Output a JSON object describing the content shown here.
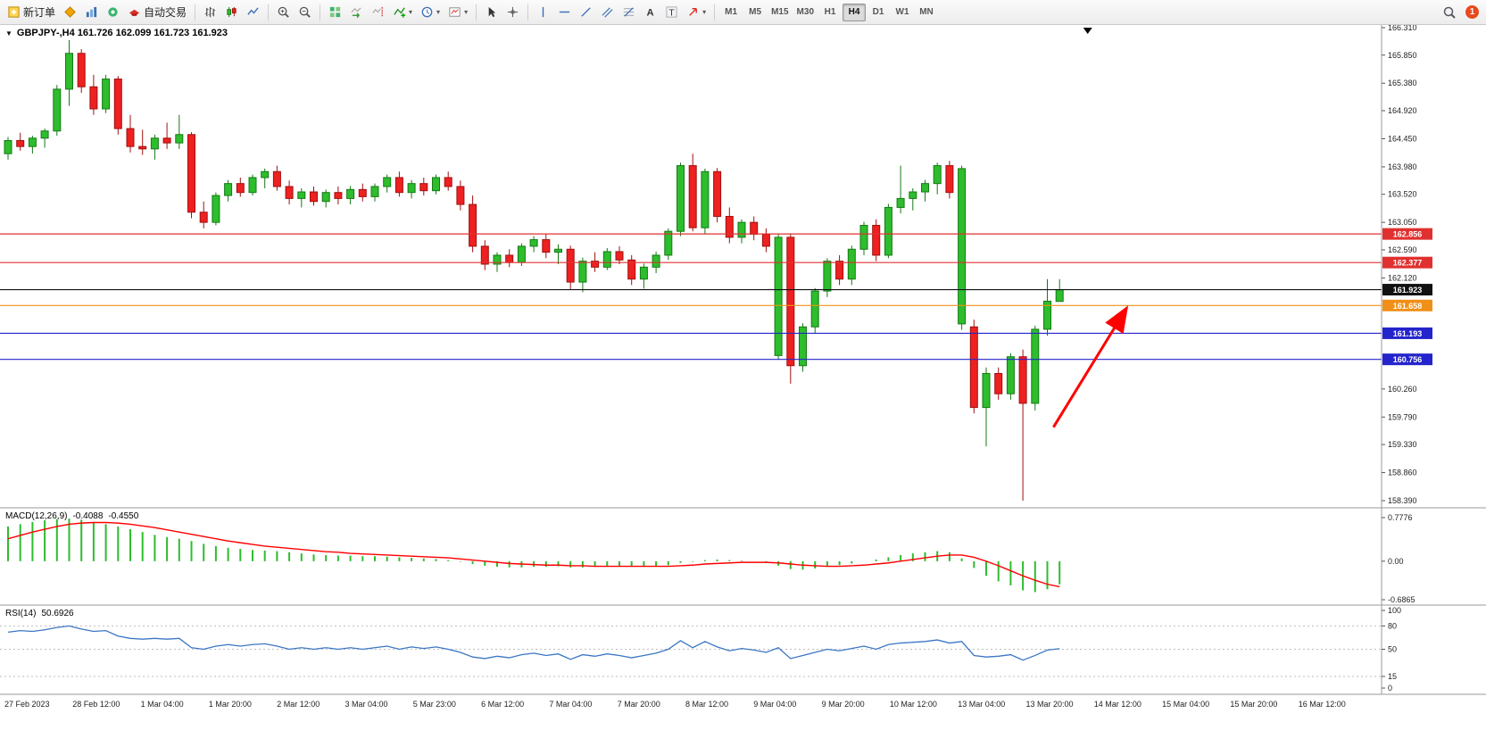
{
  "toolbar": {
    "new_order_label": "新订单",
    "autotrading_label": "自动交易",
    "timeframes": [
      "M1",
      "M5",
      "M15",
      "M30",
      "H1",
      "H4",
      "D1",
      "W1",
      "MN"
    ],
    "active_timeframe": "H4",
    "notification_count": "1",
    "icons": [
      "new-order",
      "symbols",
      "charts",
      "alerts",
      "autotrading",
      "bar-chart",
      "candlestick-chart",
      "line-chart",
      "zoom-in",
      "zoom-out",
      "tile-windows",
      "auto-scroll",
      "chart-shift",
      "indicators",
      "periods",
      "templates",
      "cursor",
      "crosshair",
      "vertical-line",
      "horizontal-line",
      "trendline",
      "channel",
      "fibonacci",
      "text",
      "label",
      "arrows",
      "search",
      "notification"
    ]
  },
  "chart_data": {
    "type": "candlestick",
    "symbol": "GBPJPY-",
    "timeframe": "H4",
    "legend": "GBPJPY-,H4 161.726 162.099 161.723 161.923",
    "ohlc": {
      "open": "161.726",
      "high": "162.099",
      "low": "161.723",
      "close": "161.923"
    },
    "price_range": [
      158.39,
      166.31
    ],
    "price_axis_labels": [
      "166.310",
      "165.850",
      "165.380",
      "164.920",
      "164.450",
      "163.980",
      "163.520",
      "163.050",
      "162.590",
      "162.120",
      "160.260",
      "159.790",
      "159.330",
      "158.860",
      "158.390"
    ],
    "time_axis_labels": [
      "27 Feb 2023",
      "28 Feb 12:00",
      "1 Mar 04:00",
      "1 Mar 20:00",
      "2 Mar 12:00",
      "3 Mar 04:00",
      "5 Mar 23:00",
      "6 Mar 12:00",
      "7 Mar 04:00",
      "7 Mar 20:00",
      "8 Mar 12:00",
      "9 Mar 04:00",
      "9 Mar 20:00",
      "10 Mar 12:00",
      "13 Mar 04:00",
      "13 Mar 20:00",
      "14 Mar 12:00",
      "15 Mar 04:00",
      "15 Mar 20:00",
      "16 Mar 12:00"
    ],
    "colors": {
      "up": "#2DBD2D",
      "down": "#EE2020",
      "up_dark": "#157A15",
      "down_dark": "#A01010",
      "rsi": "#3B76C4",
      "macd_signal": "#FF0000"
    },
    "horizontal_lines": [
      {
        "price": 162.856,
        "label": "162.856",
        "color": "#E03030"
      },
      {
        "price": 162.377,
        "label": "162.377",
        "color": "#E03030"
      },
      {
        "price": 161.923,
        "label": "161.923",
        "color": "#111111"
      },
      {
        "price": 161.658,
        "label": "161.658",
        "color": "#F09018"
      },
      {
        "price": 161.193,
        "label": "161.193",
        "color": "#2424CC"
      },
      {
        "price": 160.756,
        "label": "160.756",
        "color": "#2424CC"
      }
    ],
    "arrow": {
      "color": "#FF0000",
      "from": {
        "index": 85.5,
        "price": 159.62
      },
      "to": {
        "index": 91.5,
        "price": 161.62
      }
    },
    "shift_marker_index": 88.3,
    "candles": [
      [
        164.2,
        164.48,
        164.1,
        164.42
      ],
      [
        164.42,
        164.55,
        164.25,
        164.32
      ],
      [
        164.32,
        164.5,
        164.2,
        164.46
      ],
      [
        164.46,
        164.62,
        164.3,
        164.58
      ],
      [
        164.58,
        165.35,
        164.5,
        165.28
      ],
      [
        165.28,
        166.1,
        165.0,
        165.88
      ],
      [
        165.88,
        165.95,
        165.22,
        165.32
      ],
      [
        165.32,
        165.52,
        164.85,
        164.95
      ],
      [
        164.95,
        165.52,
        164.88,
        165.45
      ],
      [
        165.45,
        165.5,
        164.52,
        164.62
      ],
      [
        164.62,
        164.85,
        164.22,
        164.32
      ],
      [
        164.32,
        164.6,
        164.18,
        164.28
      ],
      [
        164.28,
        164.52,
        164.1,
        164.46
      ],
      [
        164.46,
        164.72,
        164.28,
        164.38
      ],
      [
        164.38,
        164.85,
        164.28,
        164.52
      ],
      [
        164.52,
        164.56,
        163.12,
        163.22
      ],
      [
        163.22,
        163.4,
        162.95,
        163.05
      ],
      [
        163.05,
        163.55,
        163.0,
        163.5
      ],
      [
        163.5,
        163.76,
        163.4,
        163.7
      ],
      [
        163.7,
        163.8,
        163.48,
        163.55
      ],
      [
        163.55,
        163.85,
        163.5,
        163.8
      ],
      [
        163.8,
        163.95,
        163.62,
        163.9
      ],
      [
        163.9,
        164.0,
        163.58,
        163.65
      ],
      [
        163.65,
        163.75,
        163.35,
        163.45
      ],
      [
        163.45,
        163.62,
        163.3,
        163.56
      ],
      [
        163.56,
        163.65,
        163.33,
        163.4
      ],
      [
        163.4,
        163.6,
        163.3,
        163.55
      ],
      [
        163.55,
        163.65,
        163.35,
        163.45
      ],
      [
        163.45,
        163.66,
        163.35,
        163.6
      ],
      [
        163.6,
        163.7,
        163.4,
        163.48
      ],
      [
        163.48,
        163.7,
        163.4,
        163.65
      ],
      [
        163.65,
        163.85,
        163.55,
        163.8
      ],
      [
        163.8,
        163.9,
        163.48,
        163.55
      ],
      [
        163.55,
        163.76,
        163.45,
        163.7
      ],
      [
        163.7,
        163.8,
        163.5,
        163.58
      ],
      [
        163.58,
        163.85,
        163.52,
        163.8
      ],
      [
        163.8,
        163.9,
        163.58,
        163.65
      ],
      [
        163.65,
        163.75,
        163.25,
        163.35
      ],
      [
        163.35,
        163.5,
        162.55,
        162.65
      ],
      [
        162.65,
        162.75,
        162.25,
        162.35
      ],
      [
        162.35,
        162.55,
        162.22,
        162.5
      ],
      [
        162.5,
        162.6,
        162.3,
        162.38
      ],
      [
        162.38,
        162.7,
        162.32,
        162.65
      ],
      [
        162.65,
        162.82,
        162.55,
        162.76
      ],
      [
        162.76,
        162.85,
        162.45,
        162.55
      ],
      [
        162.55,
        162.68,
        162.35,
        162.6
      ],
      [
        162.6,
        162.66,
        161.92,
        162.05
      ],
      [
        162.05,
        162.46,
        161.88,
        162.4
      ],
      [
        162.4,
        162.55,
        162.22,
        162.3
      ],
      [
        162.3,
        162.62,
        162.25,
        162.56
      ],
      [
        162.56,
        162.65,
        162.35,
        162.42
      ],
      [
        162.42,
        162.5,
        162.0,
        162.1
      ],
      [
        162.1,
        162.36,
        161.94,
        162.3
      ],
      [
        162.3,
        162.56,
        162.2,
        162.5
      ],
      [
        162.5,
        162.95,
        162.42,
        162.9
      ],
      [
        162.9,
        164.05,
        162.82,
        164.0
      ],
      [
        164.0,
        164.2,
        162.9,
        162.96
      ],
      [
        162.96,
        163.95,
        162.86,
        163.9
      ],
      [
        163.9,
        163.96,
        163.05,
        163.15
      ],
      [
        163.15,
        163.3,
        162.7,
        162.8
      ],
      [
        162.8,
        163.1,
        162.7,
        163.05
      ],
      [
        163.05,
        163.15,
        162.75,
        162.85
      ],
      [
        162.85,
        162.95,
        162.55,
        162.65
      ],
      [
        160.82,
        162.86,
        160.75,
        162.8
      ],
      [
        162.8,
        162.86,
        160.35,
        160.65
      ],
      [
        160.65,
        161.36,
        160.55,
        161.3
      ],
      [
        161.3,
        161.95,
        161.2,
        161.9
      ],
      [
        161.9,
        162.45,
        161.8,
        162.4
      ],
      [
        162.4,
        162.5,
        162.0,
        162.1
      ],
      [
        162.1,
        162.66,
        162.0,
        162.6
      ],
      [
        162.6,
        163.06,
        162.5,
        163.0
      ],
      [
        163.0,
        163.1,
        162.4,
        162.5
      ],
      [
        162.5,
        163.36,
        162.45,
        163.3
      ],
      [
        163.3,
        164.0,
        163.2,
        163.45
      ],
      [
        163.45,
        163.62,
        163.25,
        163.56
      ],
      [
        163.56,
        163.76,
        163.4,
        163.7
      ],
      [
        163.7,
        164.05,
        163.52,
        164.0
      ],
      [
        164.0,
        164.08,
        163.45,
        163.55
      ],
      [
        161.35,
        164.0,
        161.25,
        163.95
      ],
      [
        161.3,
        161.42,
        159.85,
        159.95
      ],
      [
        159.95,
        160.62,
        159.3,
        160.52
      ],
      [
        160.52,
        160.62,
        160.08,
        160.18
      ],
      [
        160.18,
        160.86,
        160.08,
        160.8
      ],
      [
        160.8,
        160.92,
        158.39,
        160.02
      ],
      [
        160.02,
        161.32,
        159.9,
        161.26
      ],
      [
        161.26,
        162.1,
        161.15,
        161.73
      ],
      [
        161.726,
        162.099,
        161.723,
        161.923
      ]
    ],
    "indicators": [
      {
        "name": "MACD",
        "label": "MACD(12,26,9)",
        "value_main": "-0.4088",
        "value_signal": "-0.4550",
        "range": [
          -0.6865,
          0.7776
        ],
        "scale_labels": [
          "0.7776",
          "0.00",
          "-0.6865"
        ],
        "histogram": [
          0.62,
          0.66,
          0.7,
          0.73,
          0.75,
          0.76,
          0.74,
          0.7,
          0.66,
          0.62,
          0.57,
          0.52,
          0.47,
          0.43,
          0.4,
          0.36,
          0.31,
          0.27,
          0.24,
          0.22,
          0.2,
          0.19,
          0.18,
          0.16,
          0.14,
          0.12,
          0.11,
          0.1,
          0.1,
          0.09,
          0.09,
          0.08,
          0.07,
          0.06,
          0.05,
          0.04,
          0.02,
          -0.01,
          -0.05,
          -0.08,
          -0.1,
          -0.11,
          -0.11,
          -0.1,
          -0.1,
          -0.09,
          -0.11,
          -0.11,
          -0.1,
          -0.09,
          -0.09,
          -0.1,
          -0.1,
          -0.09,
          -0.07,
          -0.03,
          -0.01,
          0.02,
          0.03,
          0.02,
          0.01,
          0.0,
          -0.02,
          -0.08,
          -0.14,
          -0.15,
          -0.13,
          -0.1,
          -0.07,
          -0.04,
          0.0,
          0.03,
          0.07,
          0.11,
          0.14,
          0.16,
          0.18,
          0.16,
          0.05,
          -0.12,
          -0.26,
          -0.36,
          -0.43,
          -0.52,
          -0.55,
          -0.5,
          -0.41
        ],
        "signal": [
          0.4,
          0.46,
          0.52,
          0.57,
          0.62,
          0.66,
          0.68,
          0.69,
          0.69,
          0.68,
          0.66,
          0.63,
          0.6,
          0.56,
          0.52,
          0.48,
          0.44,
          0.4,
          0.36,
          0.33,
          0.3,
          0.27,
          0.25,
          0.23,
          0.21,
          0.19,
          0.17,
          0.16,
          0.14,
          0.13,
          0.12,
          0.11,
          0.1,
          0.09,
          0.08,
          0.07,
          0.06,
          0.04,
          0.02,
          0.0,
          -0.02,
          -0.04,
          -0.05,
          -0.06,
          -0.07,
          -0.07,
          -0.08,
          -0.08,
          -0.09,
          -0.09,
          -0.09,
          -0.09,
          -0.09,
          -0.09,
          -0.09,
          -0.08,
          -0.07,
          -0.05,
          -0.04,
          -0.03,
          -0.02,
          -0.02,
          -0.02,
          -0.03,
          -0.05,
          -0.07,
          -0.08,
          -0.09,
          -0.09,
          -0.08,
          -0.07,
          -0.05,
          -0.03,
          0.0,
          0.03,
          0.06,
          0.09,
          0.11,
          0.11,
          0.07,
          0.0,
          -0.08,
          -0.17,
          -0.26,
          -0.34,
          -0.41,
          -0.455
        ]
      },
      {
        "name": "RSI",
        "label": "RSI(14)",
        "value": "50.6926",
        "range": [
          0,
          100
        ],
        "scale_labels": [
          "100",
          "80",
          "50",
          "15",
          "0"
        ],
        "levels": [
          80,
          50,
          15
        ],
        "values": [
          72,
          74,
          73,
          75,
          78,
          80,
          76,
          73,
          74,
          67,
          64,
          63,
          64,
          63,
          64,
          52,
          50,
          54,
          56,
          54,
          56,
          57,
          54,
          50,
          52,
          50,
          52,
          50,
          52,
          50,
          52,
          54,
          50,
          53,
          51,
          53,
          50,
          46,
          40,
          38,
          41,
          39,
          43,
          45,
          42,
          44,
          37,
          43,
          41,
          44,
          42,
          39,
          42,
          45,
          50,
          61,
          52,
          60,
          53,
          48,
          51,
          49,
          46,
          52,
          38,
          42,
          46,
          50,
          48,
          51,
          54,
          50,
          56,
          58,
          59,
          60,
          62,
          58,
          60,
          42,
          40,
          41,
          43,
          36,
          42,
          49,
          50.69
        ]
      }
    ]
  }
}
